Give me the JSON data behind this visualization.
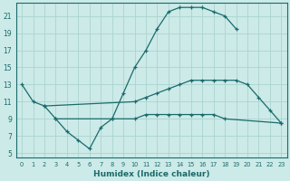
{
  "xlabel": "Humidex (Indice chaleur)",
  "bg_color": "#cceae8",
  "grid_color": "#aad4d0",
  "line_color": "#1a6b6b",
  "xlim": [
    -0.5,
    23.5
  ],
  "ylim": [
    4.5,
    22.5
  ],
  "xticks": [
    0,
    1,
    2,
    3,
    4,
    5,
    6,
    7,
    8,
    9,
    10,
    11,
    12,
    13,
    14,
    15,
    16,
    17,
    18,
    19,
    20,
    21,
    22,
    23
  ],
  "yticks": [
    5,
    7,
    9,
    11,
    13,
    15,
    17,
    19,
    21
  ],
  "line1_x": [
    0,
    1,
    2,
    3,
    4,
    5,
    6,
    7,
    8,
    9,
    10,
    11,
    12,
    13,
    14,
    15,
    16,
    17,
    18,
    19
  ],
  "line1_y": [
    13,
    11,
    10.5,
    9,
    7.5,
    6.5,
    5.5,
    8,
    9,
    12,
    15,
    17,
    19.5,
    21.5,
    22,
    22,
    22,
    21.5,
    21,
    19.5
  ],
  "line2_x": [
    2,
    10,
    11,
    12,
    13,
    14,
    15,
    16,
    17,
    18,
    19,
    20,
    21,
    22,
    23
  ],
  "line2_y": [
    10.5,
    11,
    11.5,
    12,
    12.5,
    13,
    13.5,
    13.5,
    13.5,
    13.5,
    13.5,
    13,
    11.5,
    10,
    8.5
  ],
  "line3_x": [
    3,
    8,
    10,
    11,
    12,
    13,
    14,
    15,
    16,
    17,
    18,
    23
  ],
  "line3_y": [
    9,
    9,
    9,
    9.5,
    9.5,
    9.5,
    9.5,
    9.5,
    9.5,
    9.5,
    9,
    8.5
  ]
}
